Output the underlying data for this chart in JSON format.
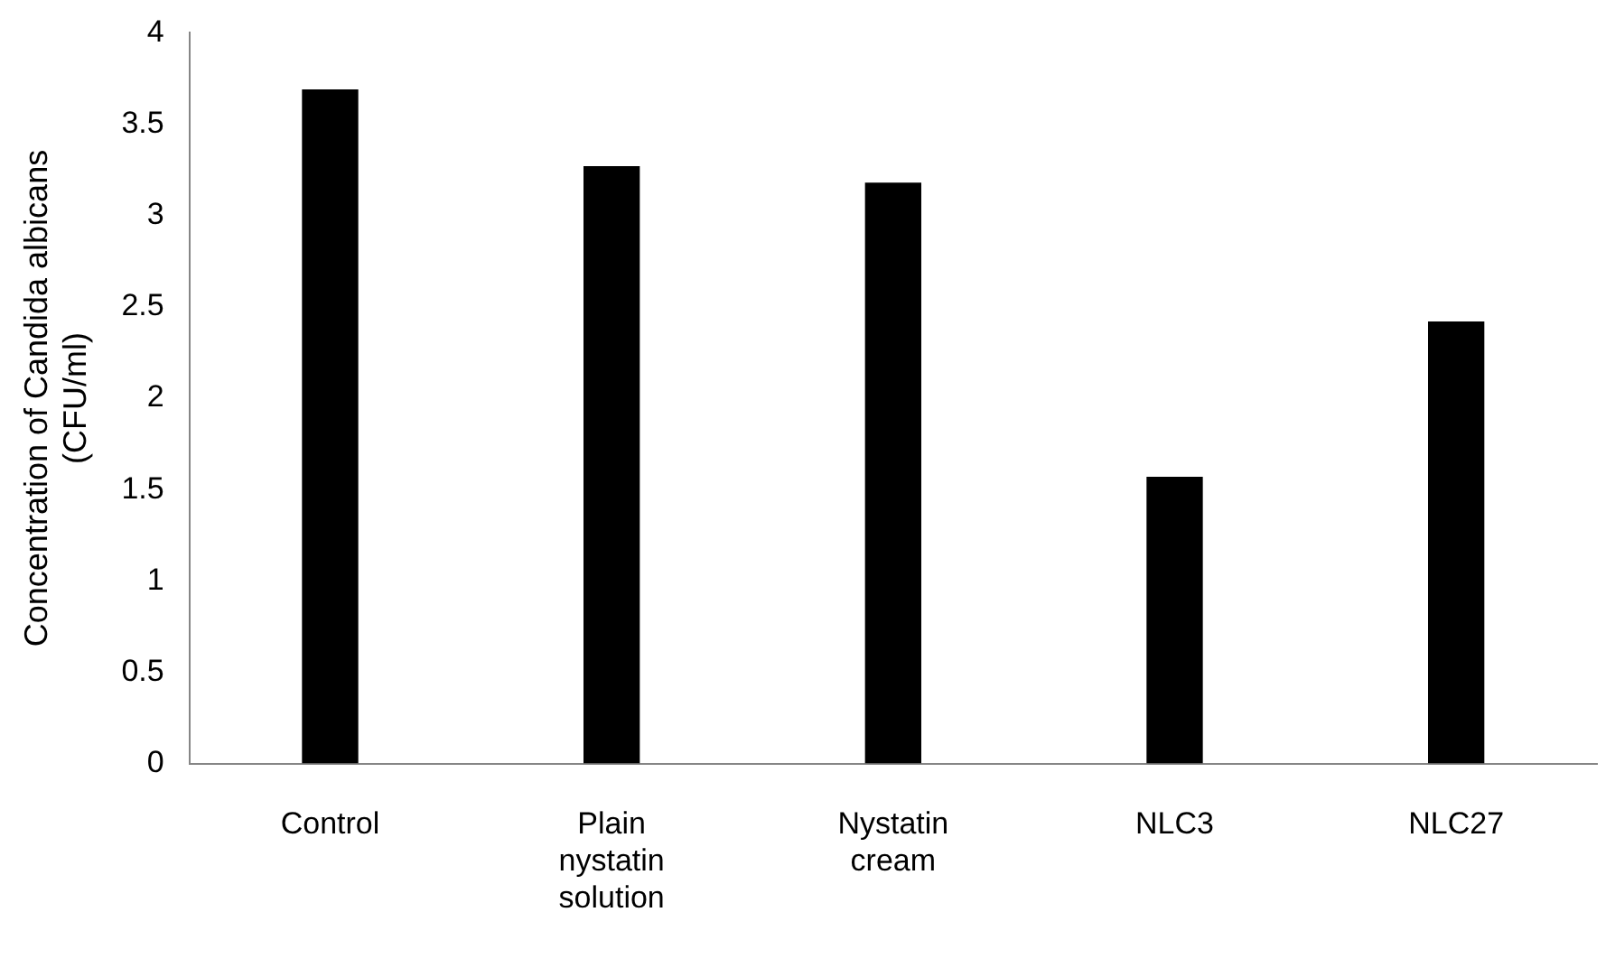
{
  "chart_data": {
    "type": "bar",
    "ylabel": "Concentration of Candida albicans (CFU/ml)",
    "categories": [
      "Control",
      "Plain nystatin solution",
      "Nystatin cream",
      "NLC3",
      "NLC27"
    ],
    "values": [
      3.69,
      3.27,
      3.18,
      1.57,
      2.42
    ],
    "color": "#000000",
    "ylim": [
      0,
      4
    ],
    "yticks": [
      0,
      0.5,
      1,
      1.5,
      2,
      2.5,
      3,
      3.5,
      4
    ],
    "grid": false,
    "legend": false
  }
}
